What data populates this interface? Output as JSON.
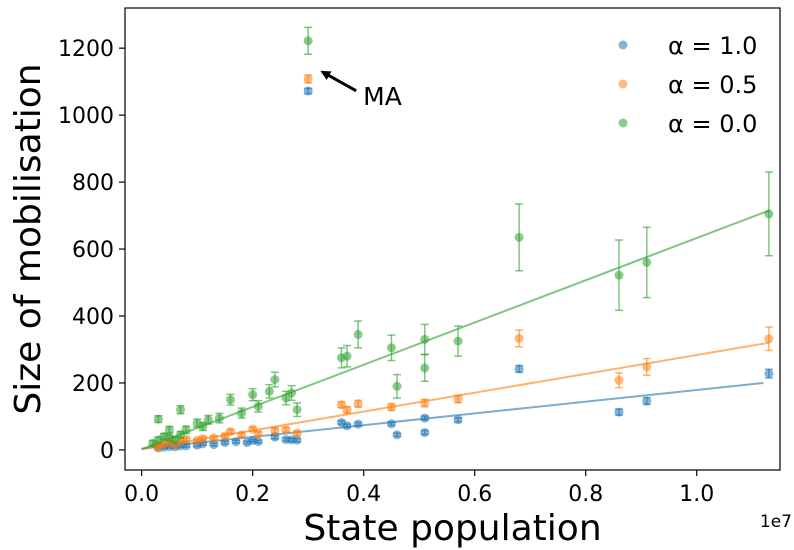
{
  "chart_data": {
    "type": "scatter",
    "title": "",
    "xlabel": "State population",
    "ylabel": "Size of mobilisation",
    "x_offset_label": "1e7",
    "xlim": [
      -0.03,
      1.15
    ],
    "ylim": [
      -60,
      1320
    ],
    "x_ticks": [
      0.0,
      0.2,
      0.4,
      0.6,
      0.8,
      1.0
    ],
    "x_tick_labels": [
      "0.0",
      "0.2",
      "0.4",
      "0.6",
      "0.8",
      "1.0"
    ],
    "y_ticks": [
      0,
      200,
      400,
      600,
      800,
      1000,
      1200
    ],
    "y_tick_labels": [
      "0",
      "200",
      "400",
      "600",
      "800",
      "1000",
      "1200"
    ],
    "grid": false,
    "legend_position": "top-right",
    "annotation": {
      "text": "MA",
      "x": 0.3,
      "y": 1222
    },
    "series": [
      {
        "name": "α = 1.0",
        "color": "#1f77b4",
        "fit": [
          [
            0.0,
            4
          ],
          [
            1.12,
            200
          ]
        ],
        "points": [
          [
            0.03,
            6,
            4
          ],
          [
            0.04,
            8,
            4
          ],
          [
            0.05,
            10,
            4
          ],
          [
            0.06,
            9,
            4
          ],
          [
            0.07,
            12,
            4
          ],
          [
            0.08,
            12,
            4
          ],
          [
            0.1,
            14,
            4
          ],
          [
            0.11,
            18,
            4
          ],
          [
            0.13,
            16,
            4
          ],
          [
            0.15,
            22,
            4
          ],
          [
            0.17,
            24,
            4
          ],
          [
            0.19,
            22,
            4
          ],
          [
            0.2,
            28,
            4
          ],
          [
            0.21,
            25,
            4
          ],
          [
            0.24,
            38,
            5
          ],
          [
            0.26,
            31,
            5
          ],
          [
            0.27,
            30,
            5
          ],
          [
            0.28,
            29,
            5
          ],
          [
            0.3,
            1072,
            8
          ],
          [
            0.36,
            82,
            5
          ],
          [
            0.37,
            72,
            5
          ],
          [
            0.39,
            77,
            5
          ],
          [
            0.45,
            78,
            5
          ],
          [
            0.46,
            45,
            5
          ],
          [
            0.51,
            95,
            6
          ],
          [
            0.51,
            52,
            6
          ],
          [
            0.57,
            90,
            6
          ],
          [
            0.68,
            242,
            10
          ],
          [
            0.86,
            113,
            9
          ],
          [
            0.91,
            146,
            10
          ],
          [
            1.13,
            228,
            13
          ]
        ]
      },
      {
        "name": "α = 0.5",
        "color": "#ff7f0e",
        "fit": [
          [
            0.0,
            2
          ],
          [
            1.13,
            320
          ]
        ],
        "points": [
          [
            0.03,
            8,
            4
          ],
          [
            0.03,
            14,
            4
          ],
          [
            0.04,
            18,
            4
          ],
          [
            0.05,
            21,
            4
          ],
          [
            0.06,
            16,
            4
          ],
          [
            0.07,
            25,
            4
          ],
          [
            0.08,
            32,
            5
          ],
          [
            0.1,
            28,
            5
          ],
          [
            0.11,
            34,
            5
          ],
          [
            0.13,
            36,
            5
          ],
          [
            0.15,
            42,
            5
          ],
          [
            0.16,
            55,
            6
          ],
          [
            0.18,
            45,
            6
          ],
          [
            0.2,
            62,
            6
          ],
          [
            0.21,
            48,
            6
          ],
          [
            0.24,
            58,
            7
          ],
          [
            0.26,
            60,
            7
          ],
          [
            0.28,
            50,
            7
          ],
          [
            0.3,
            1108,
            12
          ],
          [
            0.36,
            135,
            9
          ],
          [
            0.37,
            120,
            9
          ],
          [
            0.39,
            138,
            10
          ],
          [
            0.45,
            128,
            10
          ],
          [
            0.51,
            140,
            11
          ],
          [
            0.57,
            152,
            11
          ],
          [
            0.68,
            333,
            25
          ],
          [
            0.86,
            208,
            22
          ],
          [
            0.91,
            248,
            25
          ],
          [
            1.13,
            332,
            35
          ]
        ]
      },
      {
        "name": "α = 0.0",
        "color": "#2ca02c",
        "fit": [
          [
            0.0,
            2
          ],
          [
            1.13,
            715
          ]
        ],
        "points": [
          [
            0.02,
            20,
            8
          ],
          [
            0.03,
            92,
            10
          ],
          [
            0.03,
            30,
            8
          ],
          [
            0.04,
            40,
            9
          ],
          [
            0.05,
            60,
            10
          ],
          [
            0.05,
            35,
            9
          ],
          [
            0.06,
            30,
            9
          ],
          [
            0.07,
            45,
            10
          ],
          [
            0.07,
            120,
            12
          ],
          [
            0.08,
            60,
            11
          ],
          [
            0.1,
            80,
            12
          ],
          [
            0.11,
            70,
            12
          ],
          [
            0.12,
            90,
            13
          ],
          [
            0.14,
            95,
            14
          ],
          [
            0.16,
            150,
            16
          ],
          [
            0.18,
            110,
            15
          ],
          [
            0.2,
            165,
            18
          ],
          [
            0.21,
            130,
            17
          ],
          [
            0.23,
            175,
            20
          ],
          [
            0.24,
            210,
            22
          ],
          [
            0.26,
            155,
            20
          ],
          [
            0.27,
            170,
            22
          ],
          [
            0.28,
            120,
            20
          ],
          [
            0.3,
            1222,
            40
          ],
          [
            0.36,
            275,
            30
          ],
          [
            0.37,
            280,
            32
          ],
          [
            0.39,
            345,
            40
          ],
          [
            0.45,
            305,
            38
          ],
          [
            0.46,
            190,
            35
          ],
          [
            0.51,
            330,
            45
          ],
          [
            0.51,
            245,
            40
          ],
          [
            0.57,
            325,
            45
          ],
          [
            0.68,
            635,
            100
          ],
          [
            0.86,
            522,
            105
          ],
          [
            0.91,
            560,
            105
          ],
          [
            1.13,
            705,
            125
          ]
        ]
      }
    ]
  }
}
